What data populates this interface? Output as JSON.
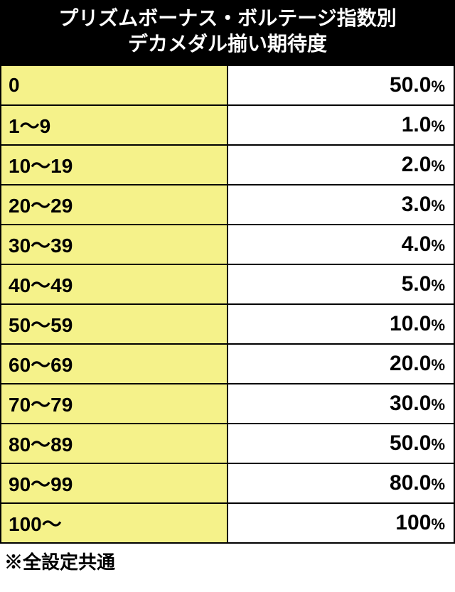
{
  "header": {
    "line1": "プリズムボーナス・ボルテージ指数別",
    "line2": "デカメダル揃い期待度"
  },
  "table": {
    "range_bg": "#f5f28a",
    "value_bg": "#ffffff",
    "border_color": "#000000",
    "rows": [
      {
        "range": "0",
        "value": "50.0",
        "suffix": "%"
      },
      {
        "range": "1〜9",
        "value": "1.0",
        "suffix": "%"
      },
      {
        "range": "10〜19",
        "value": "2.0",
        "suffix": "%"
      },
      {
        "range": "20〜29",
        "value": "3.0",
        "suffix": "%"
      },
      {
        "range": "30〜39",
        "value": "4.0",
        "suffix": "%"
      },
      {
        "range": "40〜49",
        "value": "5.0",
        "suffix": "%"
      },
      {
        "range": "50〜59",
        "value": "10.0",
        "suffix": "%"
      },
      {
        "range": "60〜69",
        "value": "20.0",
        "suffix": "%"
      },
      {
        "range": "70〜79",
        "value": "30.0",
        "suffix": "%"
      },
      {
        "range": "80〜89",
        "value": "50.0",
        "suffix": "%"
      },
      {
        "range": "90〜99",
        "value": "80.0",
        "suffix": "%"
      },
      {
        "range": "100〜",
        "value": "100",
        "suffix": "%"
      }
    ]
  },
  "footer": "※全設定共通"
}
